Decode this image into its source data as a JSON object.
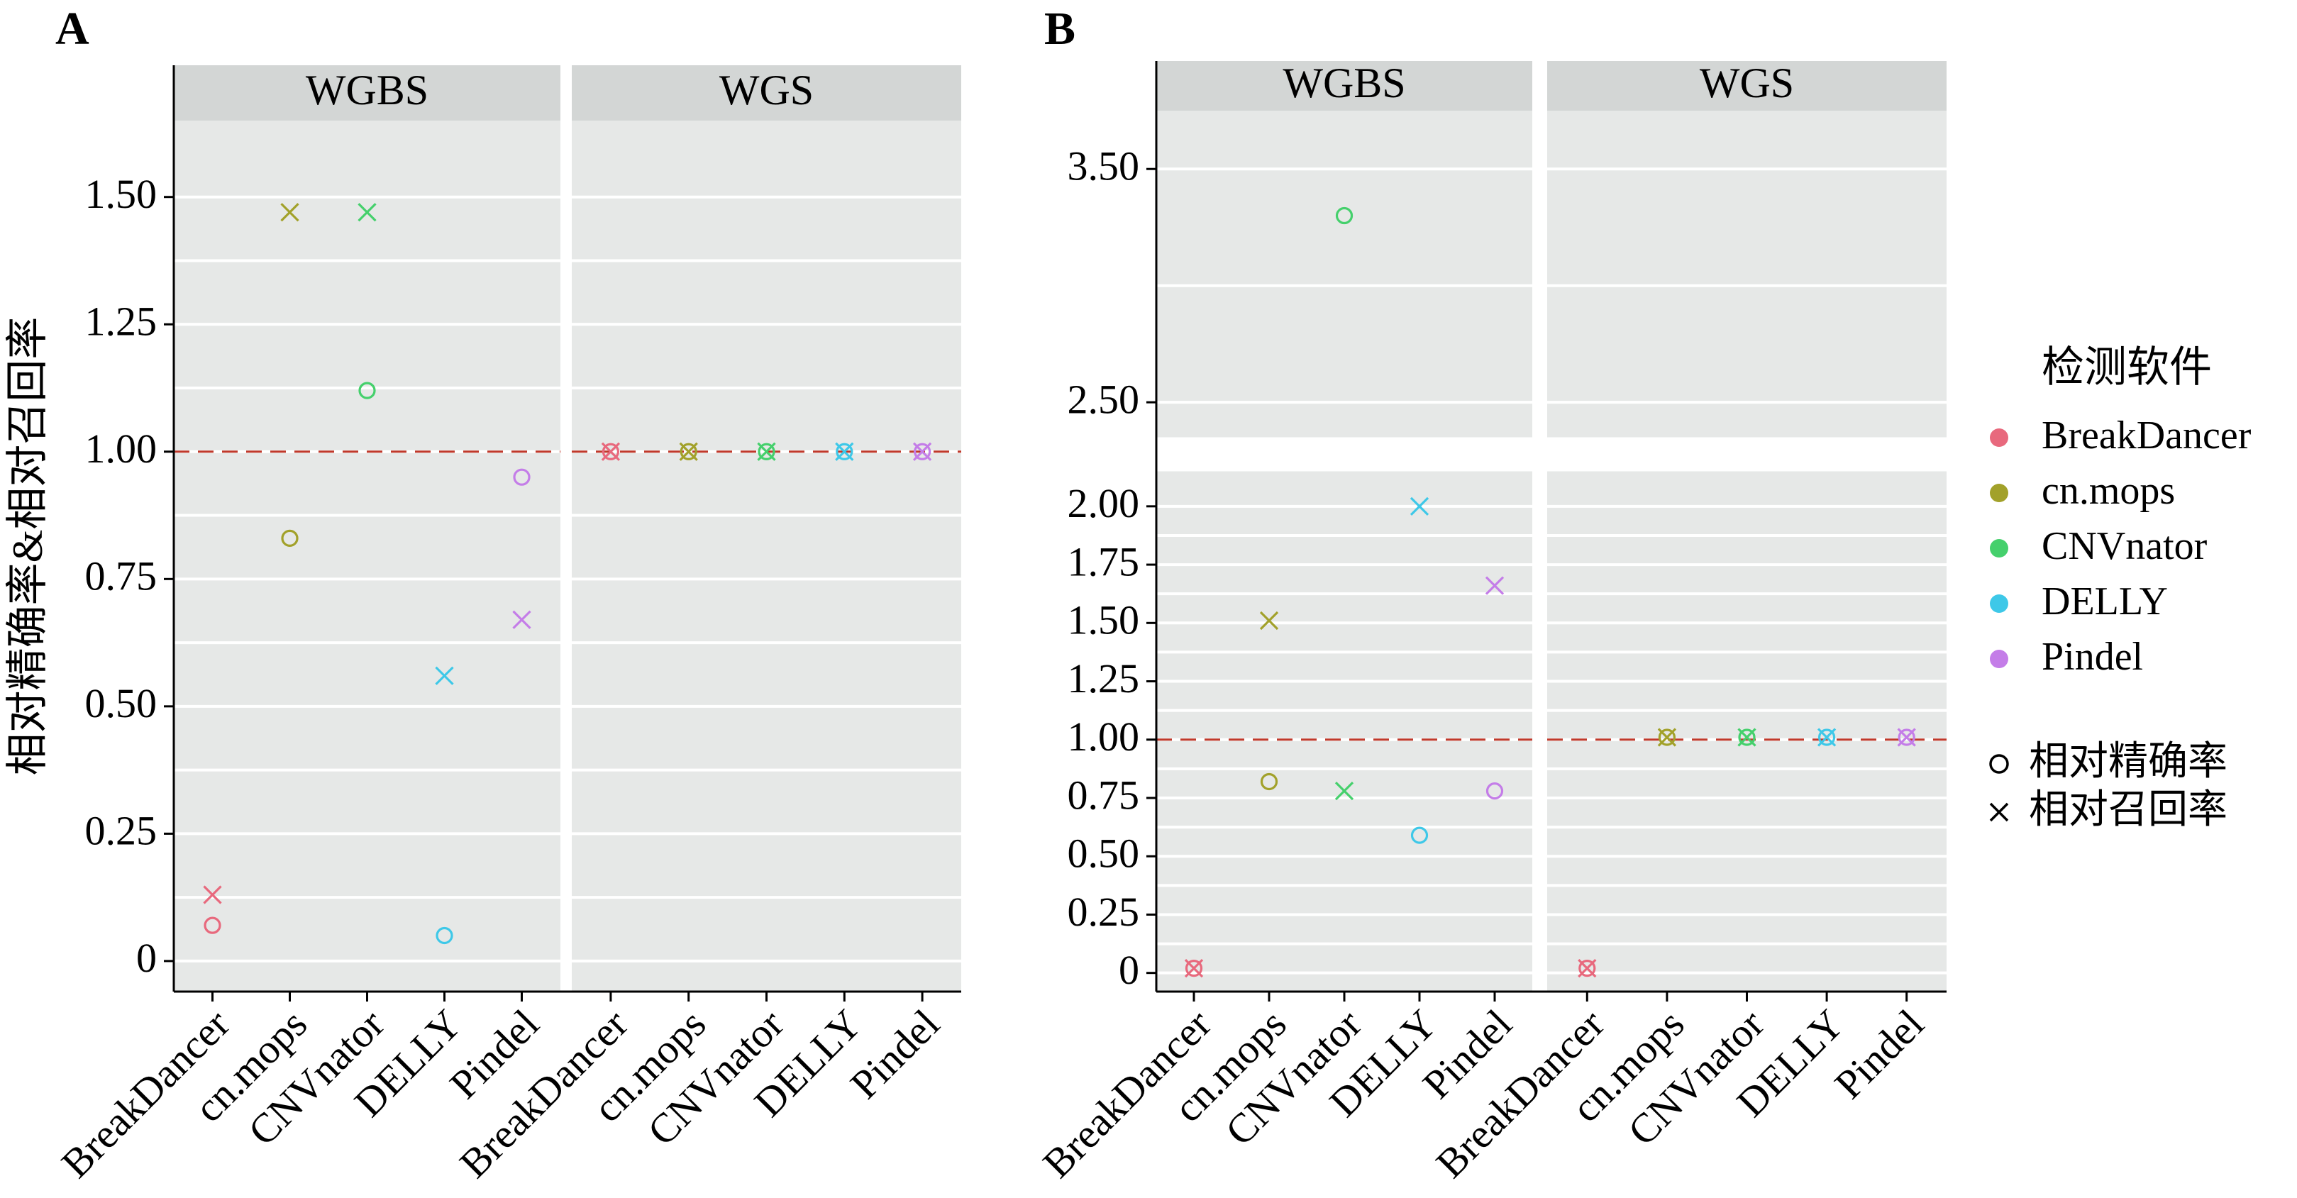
{
  "ylabel": "相对精确率&相对召回率",
  "legend": {
    "title": "检测软件",
    "software": [
      {
        "name": "BreakDancer",
        "color": "#e8697d"
      },
      {
        "name": "cn.mops",
        "color": "#a2a12a"
      },
      {
        "name": "CNVnator",
        "color": "#45d06c"
      },
      {
        "name": "DELLY",
        "color": "#3ec8e8"
      },
      {
        "name": "Pindel",
        "color": "#c47de8"
      }
    ],
    "metrics": [
      {
        "name": "相对精确率",
        "shape": "circle"
      },
      {
        "name": "相对召回率",
        "shape": "cross"
      }
    ]
  },
  "chart_data": [
    {
      "panel": "A",
      "type": "scatter",
      "facets": [
        "WGBS",
        "WGS"
      ],
      "categories": [
        "BreakDancer",
        "cn.mops",
        "CNVnator",
        "DELLY",
        "Pindel"
      ],
      "yticks": [
        0,
        0.25,
        0.5,
        0.75,
        1.0,
        1.25,
        1.5
      ],
      "yticklabels": [
        "0",
        "0.25",
        "0.50",
        "0.75",
        "1.00",
        "1.25",
        "1.50"
      ],
      "ylim": [
        -0.06,
        1.65
      ],
      "refline": 1.0,
      "points": {
        "WGBS": {
          "precision": [
            0.07,
            0.83,
            1.12,
            0.05,
            0.95
          ],
          "recall": [
            0.13,
            1.47,
            1.47,
            0.56,
            0.67
          ]
        },
        "WGS": {
          "precision": [
            1.0,
            1.0,
            1.0,
            1.0,
            1.0
          ],
          "recall": [
            1.0,
            1.0,
            1.0,
            1.0,
            1.0
          ]
        }
      }
    },
    {
      "panel": "B",
      "type": "scatter",
      "facets": [
        "WGBS",
        "WGS"
      ],
      "categories": [
        "BreakDancer",
        "cn.mops",
        "CNVnator",
        "DELLY",
        "Pindel"
      ],
      "yticks": [
        0,
        0.25,
        0.5,
        0.75,
        1.0,
        1.25,
        1.5,
        1.75,
        2.0,
        2.5,
        3.5
      ],
      "yticklabels": [
        "0",
        "0.25",
        "0.50",
        "0.75",
        "1.00",
        "1.25",
        "1.50",
        "1.75",
        "2.00",
        "2.50",
        "3.50"
      ],
      "ylim": [
        -0.08,
        3.75
      ],
      "axis_break": [
        2.15,
        2.35
      ],
      "refline": 1.0,
      "points": {
        "WGBS": {
          "precision": [
            0.02,
            0.82,
            3.3,
            0.59,
            0.78
          ],
          "recall": [
            0.02,
            1.51,
            0.78,
            2.0,
            1.66
          ]
        },
        "WGS": {
          "precision": [
            0.02,
            1.01,
            1.01,
            1.01,
            1.01
          ],
          "recall": [
            0.02,
            1.01,
            1.01,
            1.01,
            1.01
          ]
        }
      }
    }
  ]
}
